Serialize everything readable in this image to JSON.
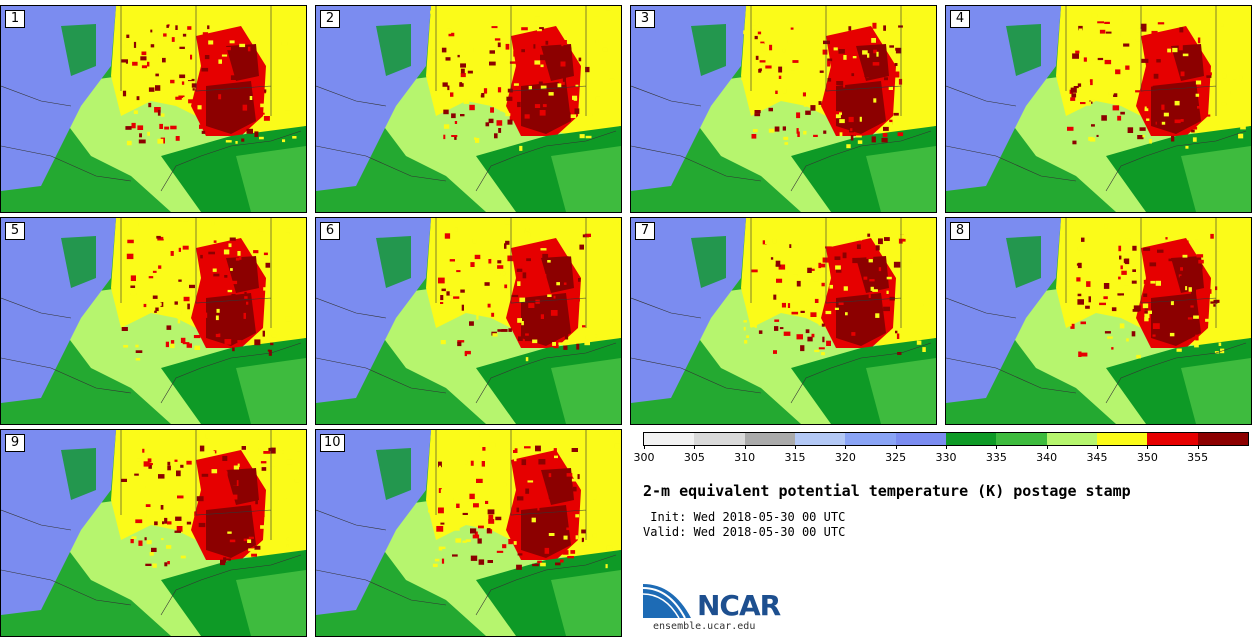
{
  "panels": [
    {
      "label": "1"
    },
    {
      "label": "2"
    },
    {
      "label": "3"
    },
    {
      "label": "4"
    },
    {
      "label": "5"
    },
    {
      "label": "6"
    },
    {
      "label": "7"
    },
    {
      "label": "8"
    },
    {
      "label": "9"
    },
    {
      "label": "10"
    }
  ],
  "colorbar": {
    "ticks": [
      "300",
      "305",
      "310",
      "315",
      "320",
      "325",
      "330",
      "335",
      "340",
      "345",
      "350",
      "355"
    ],
    "colors": [
      "#f2f2f2",
      "#d9d9d9",
      "#aaaaaa",
      "#b3c8f5",
      "#8aa4f5",
      "#7b8cf0",
      "#0e9a26",
      "#3ebb3e",
      "#b6f56e",
      "#fbfb19",
      "#e60000",
      "#8c0000"
    ]
  },
  "title": "2-m equivalent potential temperature (K) postage stamp",
  "init": " Init: Wed 2018-05-30 00 UTC",
  "valid": "Valid: Wed 2018-05-30 00 UTC",
  "logo": {
    "name": "NCAR",
    "url": "ensemble.ucar.edu"
  },
  "map_colors": {
    "dark_green": "#0e9a26",
    "mid_green": "#3ebb3e",
    "light_green": "#b6f56e",
    "yellow": "#fbfb19",
    "red": "#e60000",
    "dark_red": "#8c0000",
    "blue": "#7b8cf0"
  }
}
